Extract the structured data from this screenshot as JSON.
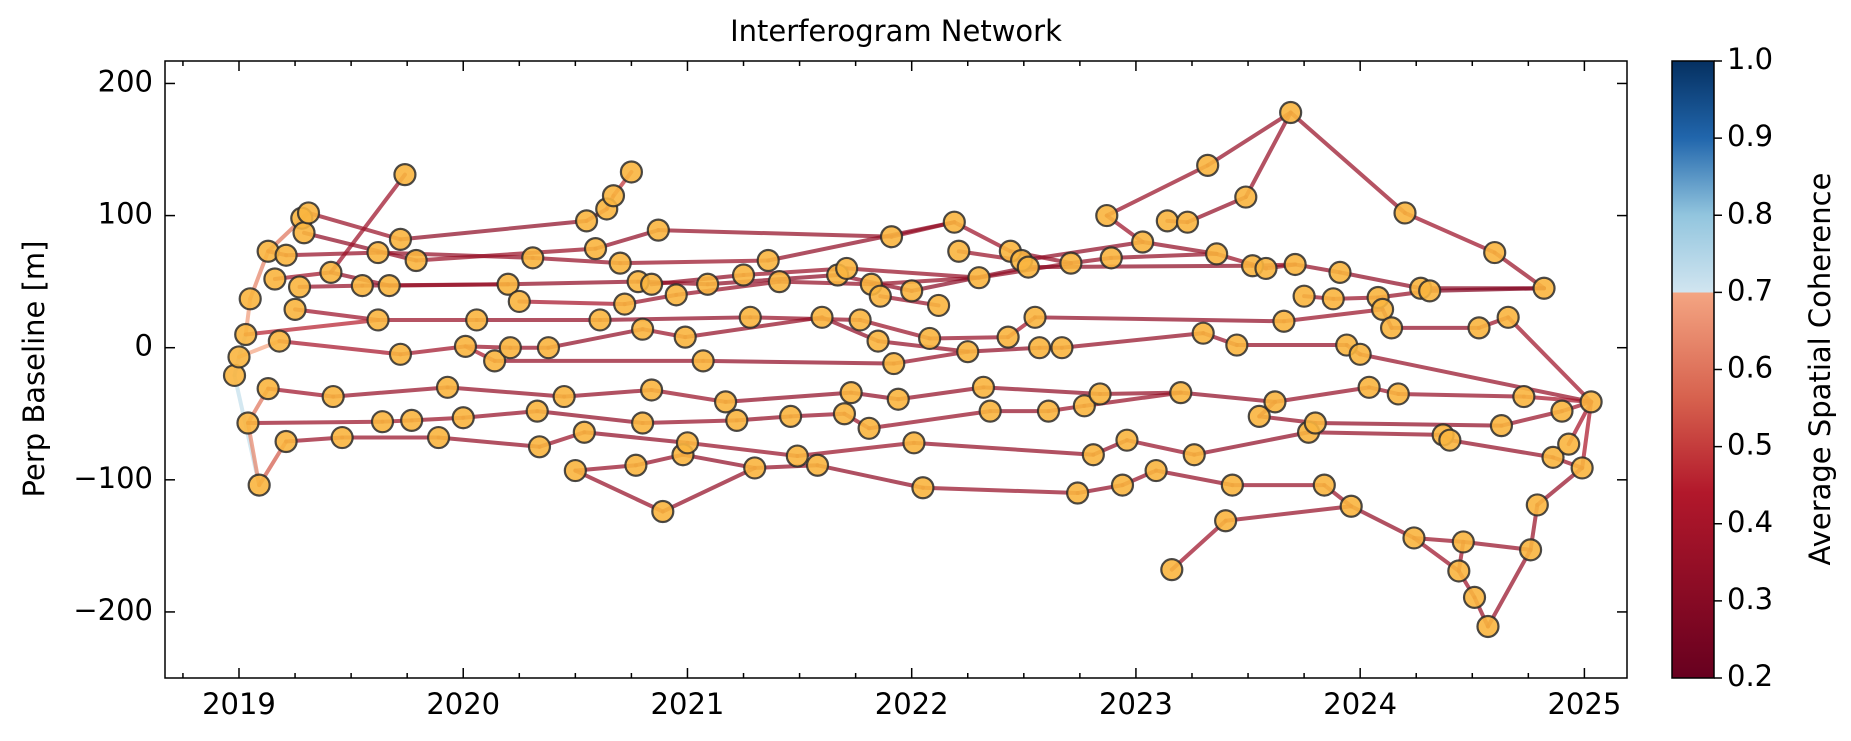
{
  "chart_data": {
    "type": "network",
    "title": "Interferogram Network",
    "y_label": "Perp Baseline [m]",
    "colorbar_label": "Average Spatial Coherence",
    "xlim": [
      2018.67,
      2025.19
    ],
    "xticks": [
      2019,
      2020,
      2021,
      2022,
      2023,
      2024,
      2025
    ],
    "ylim": [
      -250,
      217
    ],
    "yticks": [
      {
        "value": -200,
        "label": "−200"
      },
      {
        "value": -100,
        "label": "−100"
      },
      0,
      100,
      200
    ],
    "clim": [
      0.2,
      1.0
    ],
    "cticks": [
      0.2,
      0.3,
      0.4,
      0.5,
      0.6,
      0.7,
      0.8,
      0.9,
      {
        "value": 1.0,
        "label": "1.0"
      }
    ],
    "node_color": "#f9b53f",
    "x": [
      2018.98,
      2019.0,
      2019.03,
      2019.04,
      2019.05,
      2019.09,
      2019.13,
      2019.13,
      2019.16,
      2019.18,
      2019.21,
      2019.21,
      2019.25,
      2019.27,
      2019.28,
      2019.29,
      2019.31,
      2019.41,
      2019.42,
      2019.46,
      2019.55,
      2019.62,
      2019.62,
      2019.64,
      2019.67,
      2019.72,
      2019.72,
      2019.74,
      2019.77,
      2019.79,
      2019.89,
      2019.93,
      2020.0,
      2020.01,
      2020.06,
      2020.14,
      2020.2,
      2020.21,
      2020.25,
      2020.31,
      2020.33,
      2020.34,
      2020.38,
      2020.45,
      2020.5,
      2020.54,
      2020.55,
      2020.59,
      2020.61,
      2020.64,
      2020.67,
      2020.7,
      2020.72,
      2020.75,
      2020.77,
      2020.78,
      2020.8,
      2020.8,
      2020.84,
      2020.84,
      2020.87,
      2020.89,
      2020.95,
      2020.98,
      2020.99,
      2021.0,
      2021.07,
      2021.09,
      2021.17,
      2021.22,
      2021.25,
      2021.28,
      2021.3,
      2021.36,
      2021.41,
      2021.46,
      2021.49,
      2021.58,
      2021.6,
      2021.67,
      2021.7,
      2021.71,
      2021.73,
      2021.77,
      2021.81,
      2021.82,
      2021.85,
      2021.86,
      2021.91,
      2021.92,
      2021.94,
      2022.0,
      2022.01,
      2022.05,
      2022.08,
      2022.12,
      2022.19,
      2022.21,
      2022.25,
      2022.3,
      2022.32,
      2022.35,
      2022.43,
      2022.44,
      2022.49,
      2022.52,
      2022.55,
      2022.57,
      2022.61,
      2022.67,
      2022.71,
      2022.74,
      2022.77,
      2022.81,
      2022.84,
      2022.87,
      2022.89,
      2022.94,
      2022.96,
      2023.03,
      2023.09,
      2023.14,
      2023.16,
      2023.2,
      2023.23,
      2023.26,
      2023.3,
      2023.32,
      2023.36,
      2023.4,
      2023.43,
      2023.45,
      2023.49,
      2023.52,
      2023.55,
      2023.58,
      2023.62,
      2023.66,
      2023.69,
      2023.71,
      2023.75,
      2023.77,
      2023.8,
      2023.84,
      2023.88,
      2023.91,
      2023.94,
      2023.96,
      2024.0,
      2024.04,
      2024.08,
      2024.1,
      2024.14,
      2024.17,
      2024.2,
      2024.24,
      2024.27,
      2024.31,
      2024.37,
      2024.4,
      2024.44,
      2024.46,
      2024.51,
      2024.53,
      2024.57,
      2024.6,
      2024.63,
      2024.66,
      2024.73,
      2024.76,
      2024.79,
      2024.82,
      2024.86,
      2024.9,
      2024.93,
      2024.99,
      2025.03
    ],
    "values": [
      -21,
      -7,
      10,
      -57,
      37,
      -104,
      73,
      -31,
      52,
      5,
      -71,
      70,
      29,
      46,
      98,
      87,
      102,
      57,
      -37,
      -68,
      47,
      72,
      21,
      -56,
      47,
      82,
      -5,
      131,
      -55,
      66,
      -68,
      -30,
      -53,
      1,
      21,
      -10,
      48,
      0,
      35,
      68,
      -48,
      -75,
      0,
      -37,
      -93,
      -64,
      96,
      75,
      21,
      105,
      115,
      64,
      33,
      133,
      -89,
      50,
      14,
      -57,
      48,
      -32,
      89,
      -124,
      40,
      -81,
      8,
      -72,
      -10,
      48,
      -41,
      -55,
      55,
      23,
      -91,
      66,
      50,
      -52,
      -82,
      -89,
      23,
      55,
      -50,
      60,
      -34,
      21,
      -61,
      48,
      5,
      39,
      84,
      -12,
      -39,
      43,
      -72,
      -106,
      7,
      32,
      95,
      73,
      -3,
      53,
      -30,
      -48,
      8,
      73,
      66,
      61,
      23,
      0,
      -48,
      0,
      64,
      -110,
      -44,
      -81,
      -35,
      100,
      68,
      -104,
      -70,
      80,
      -93,
      96,
      -168,
      -34,
      95,
      -81,
      11,
      138,
      71,
      -131,
      -104,
      2,
      114,
      62,
      -52,
      60,
      -41,
      20,
      178,
      63,
      39,
      -64,
      -57,
      -104,
      37,
      57,
      2,
      -120,
      -5,
      -30,
      38,
      29,
      15,
      -35,
      102,
      -144,
      45,
      43,
      -66,
      -70,
      -169,
      -147,
      -189,
      15,
      -211,
      72,
      -59,
      23,
      -37,
      -153,
      -119,
      45,
      -83,
      -48,
      -73,
      -91,
      -41
    ],
    "edges": [
      [
        0,
        1,
        0.75
      ],
      [
        1,
        2,
        0.74
      ],
      [
        0,
        5,
        0.72
      ],
      [
        3,
        5,
        0.64
      ],
      [
        2,
        4,
        0.68
      ],
      [
        4,
        6,
        0.63
      ],
      [
        6,
        16,
        0.6
      ],
      [
        1,
        9,
        0.7
      ],
      [
        3,
        7,
        0.6
      ],
      [
        5,
        10,
        0.55
      ],
      [
        6,
        11,
        0.38
      ],
      [
        11,
        21,
        0.35
      ],
      [
        14,
        16,
        0.4
      ],
      [
        16,
        25,
        0.36
      ],
      [
        15,
        29,
        0.33
      ],
      [
        17,
        27,
        0.37
      ],
      [
        21,
        39,
        0.34
      ],
      [
        25,
        46,
        0.32
      ],
      [
        29,
        47,
        0.36
      ],
      [
        39,
        51,
        0.35
      ],
      [
        46,
        49,
        0.42
      ],
      [
        49,
        50,
        0.45
      ],
      [
        50,
        53,
        0.48
      ],
      [
        47,
        60,
        0.33
      ],
      [
        60,
        88,
        0.34
      ],
      [
        51,
        73,
        0.36
      ],
      [
        73,
        96,
        0.33
      ],
      [
        88,
        96,
        0.35
      ],
      [
        96,
        103,
        0.37
      ],
      [
        97,
        104,
        0.36
      ],
      [
        103,
        110,
        0.34
      ],
      [
        110,
        116,
        0.35
      ],
      [
        104,
        119,
        0.33
      ],
      [
        116,
        128,
        0.34
      ],
      [
        115,
        119,
        0.37
      ],
      [
        115,
        127,
        0.36
      ],
      [
        121,
        124,
        0.35
      ],
      [
        124,
        132,
        0.34
      ],
      [
        127,
        138,
        0.35
      ],
      [
        138,
        154,
        0.36
      ],
      [
        132,
        138,
        0.35
      ],
      [
        119,
        128,
        0.34
      ],
      [
        128,
        135,
        0.36
      ],
      [
        135,
        139,
        0.35
      ],
      [
        154,
        165,
        0.37
      ],
      [
        165,
        171,
        0.36
      ],
      [
        8,
        17,
        0.38
      ],
      [
        13,
        20,
        0.35
      ],
      [
        17,
        24,
        0.34
      ],
      [
        20,
        36,
        0.32
      ],
      [
        24,
        36,
        0.36
      ],
      [
        36,
        55,
        0.33
      ],
      [
        38,
        52,
        0.4
      ],
      [
        55,
        67,
        0.34
      ],
      [
        58,
        70,
        0.33
      ],
      [
        62,
        74,
        0.35
      ],
      [
        67,
        79,
        0.32
      ],
      [
        70,
        81,
        0.36
      ],
      [
        74,
        85,
        0.34
      ],
      [
        79,
        91,
        0.33
      ],
      [
        81,
        99,
        0.35
      ],
      [
        85,
        99,
        0.34
      ],
      [
        87,
        95,
        0.36
      ],
      [
        91,
        105,
        0.31
      ],
      [
        99,
        110,
        0.34
      ],
      [
        105,
        133,
        0.32
      ],
      [
        133,
        139,
        0.35
      ],
      [
        139,
        145,
        0.34
      ],
      [
        145,
        156,
        0.33
      ],
      [
        144,
        150,
        0.36
      ],
      [
        150,
        157,
        0.35
      ],
      [
        156,
        171,
        0.3
      ],
      [
        157,
        171,
        0.29
      ],
      [
        140,
        144,
        0.35
      ],
      [
        12,
        22,
        0.37
      ],
      [
        22,
        34,
        0.36
      ],
      [
        34,
        48,
        0.34
      ],
      [
        48,
        71,
        0.33
      ],
      [
        52,
        62,
        0.35
      ],
      [
        9,
        26,
        0.4
      ],
      [
        2,
        22,
        0.45
      ],
      [
        26,
        33,
        0.38
      ],
      [
        33,
        37,
        0.36
      ],
      [
        37,
        42,
        0.35
      ],
      [
        42,
        56,
        0.33
      ],
      [
        56,
        64,
        0.36
      ],
      [
        64,
        78,
        0.34
      ],
      [
        71,
        83,
        0.35
      ],
      [
        78,
        86,
        0.33
      ],
      [
        83,
        94,
        0.36
      ],
      [
        86,
        98,
        0.34
      ],
      [
        94,
        102,
        0.35
      ],
      [
        98,
        107,
        0.33
      ],
      [
        102,
        106,
        0.4
      ],
      [
        107,
        109,
        0.36
      ],
      [
        109,
        126,
        0.34
      ],
      [
        106,
        137,
        0.33
      ],
      [
        126,
        131,
        0.35
      ],
      [
        131,
        146,
        0.34
      ],
      [
        137,
        151,
        0.36
      ],
      [
        146,
        148,
        0.35
      ],
      [
        151,
        152,
        0.34
      ],
      [
        152,
        163,
        0.33
      ],
      [
        163,
        167,
        0.36
      ],
      [
        167,
        176,
        0.38
      ],
      [
        148,
        176,
        0.35
      ],
      [
        35,
        66,
        0.34
      ],
      [
        66,
        89,
        0.33
      ],
      [
        89,
        98,
        0.35
      ],
      [
        33,
        35,
        0.42
      ],
      [
        7,
        18,
        0.37
      ],
      [
        18,
        31,
        0.35
      ],
      [
        3,
        23,
        0.36
      ],
      [
        23,
        28,
        0.38
      ],
      [
        28,
        32,
        0.36
      ],
      [
        31,
        43,
        0.34
      ],
      [
        32,
        40,
        0.35
      ],
      [
        40,
        57,
        0.33
      ],
      [
        43,
        59,
        0.34
      ],
      [
        57,
        69,
        0.35
      ],
      [
        59,
        68,
        0.36
      ],
      [
        68,
        82,
        0.33
      ],
      [
        69,
        75,
        0.34
      ],
      [
        75,
        80,
        0.35
      ],
      [
        82,
        90,
        0.33
      ],
      [
        80,
        84,
        0.36
      ],
      [
        90,
        100,
        0.34
      ],
      [
        84,
        101,
        0.35
      ],
      [
        100,
        114,
        0.33
      ],
      [
        101,
        108,
        0.34
      ],
      [
        108,
        112,
        0.36
      ],
      [
        112,
        123,
        0.35
      ],
      [
        114,
        123,
        0.34
      ],
      [
        123,
        136,
        0.33
      ],
      [
        136,
        149,
        0.35
      ],
      [
        134,
        142,
        0.34
      ],
      [
        149,
        153,
        0.36
      ],
      [
        153,
        168,
        0.35
      ],
      [
        142,
        166,
        0.33
      ],
      [
        168,
        176,
        0.4
      ],
      [
        166,
        173,
        0.36
      ],
      [
        173,
        176,
        0.38
      ],
      [
        134,
        136,
        0.37
      ],
      [
        10,
        19,
        0.36
      ],
      [
        19,
        30,
        0.35
      ],
      [
        30,
        41,
        0.34
      ],
      [
        41,
        45,
        0.36
      ],
      [
        45,
        65,
        0.33
      ],
      [
        44,
        54,
        0.35
      ],
      [
        54,
        63,
        0.34
      ],
      [
        63,
        72,
        0.33
      ],
      [
        65,
        76,
        0.35
      ],
      [
        72,
        77,
        0.34
      ],
      [
        76,
        92,
        0.36
      ],
      [
        77,
        93,
        0.33
      ],
      [
        92,
        113,
        0.34
      ],
      [
        93,
        111,
        0.35
      ],
      [
        111,
        117,
        0.33
      ],
      [
        113,
        118,
        0.34
      ],
      [
        117,
        120,
        0.36
      ],
      [
        118,
        125,
        0.35
      ],
      [
        120,
        130,
        0.34
      ],
      [
        125,
        141,
        0.33
      ],
      [
        130,
        143,
        0.35
      ],
      [
        141,
        158,
        0.34
      ],
      [
        143,
        147,
        0.36
      ],
      [
        158,
        159,
        0.35
      ],
      [
        159,
        172,
        0.34
      ],
      [
        172,
        175,
        0.36
      ],
      [
        174,
        176,
        0.4
      ],
      [
        175,
        176,
        0.42
      ],
      [
        44,
        61,
        0.35
      ],
      [
        61,
        72,
        0.34
      ],
      [
        122,
        129,
        0.37
      ],
      [
        129,
        147,
        0.35
      ],
      [
        147,
        155,
        0.34
      ],
      [
        155,
        161,
        0.36
      ],
      [
        161,
        169,
        0.35
      ],
      [
        160,
        162,
        0.37
      ],
      [
        162,
        164,
        0.36
      ],
      [
        164,
        169,
        0.35
      ],
      [
        160,
        161,
        0.38
      ],
      [
        169,
        170,
        0.36
      ],
      [
        170,
        175,
        0.35
      ],
      [
        155,
        160,
        0.37
      ]
    ]
  }
}
